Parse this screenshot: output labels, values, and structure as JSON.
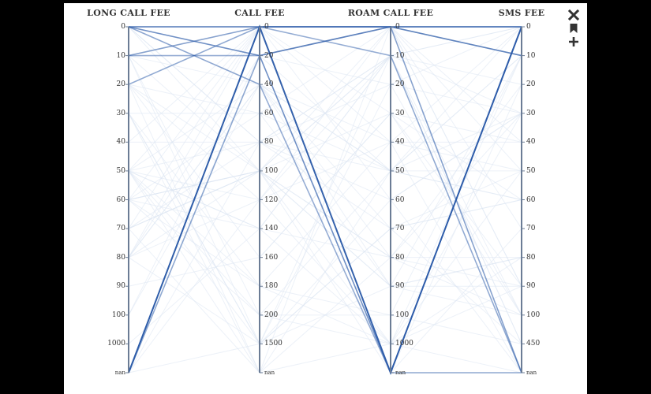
{
  "toolbar": {
    "icons": [
      "close-icon",
      "bookmark-icon",
      "plus-icon"
    ]
  },
  "colors": {
    "accent": "#2a5aa8",
    "axis": "#6b7c95",
    "line_faint": "#dde6f2"
  },
  "chart_data": {
    "type": "parallel-coordinates",
    "title": "",
    "axes": [
      {
        "name": "LONG CALL FEE",
        "ticks": [
          "0",
          "10",
          "20",
          "30",
          "40",
          "50",
          "60",
          "70",
          "80",
          "90",
          "100",
          "1000",
          "nan"
        ],
        "label_side": "left"
      },
      {
        "name": "CALL FEE",
        "ticks": [
          "0",
          "20",
          "40",
          "60",
          "80",
          "100",
          "120",
          "140",
          "160",
          "180",
          "200",
          "1500",
          "nan"
        ],
        "label_side": "right"
      },
      {
        "name": "ROAM CALL FEE",
        "ticks": [
          "0",
          "10",
          "20",
          "30",
          "40",
          "50",
          "60",
          "70",
          "80",
          "90",
          "100",
          "1000",
          "nan"
        ],
        "label_side": "right"
      },
      {
        "name": "SMS FEE",
        "ticks": [
          "0",
          "10",
          "20",
          "30",
          "40",
          "50",
          "60",
          "70",
          "80",
          "90",
          "100",
          "450",
          "nan"
        ],
        "label_side": "right"
      }
    ],
    "highlighted_records": [
      {
        "values": [
          "nan",
          "0",
          "nan",
          "0"
        ],
        "strength": 1.0
      },
      {
        "values": [
          "0",
          "0",
          "0",
          "0"
        ],
        "strength": 0.8
      },
      {
        "values": [
          "0",
          "20",
          "nan",
          "0"
        ],
        "strength": 0.6
      },
      {
        "values": [
          "10",
          "0",
          "0",
          "nan"
        ],
        "strength": 0.45
      },
      {
        "values": [
          "nan",
          "20",
          "0",
          "10"
        ],
        "strength": 0.4
      },
      {
        "values": [
          "0",
          "40",
          "nan",
          "nan"
        ],
        "strength": 0.35
      },
      {
        "values": [
          "10",
          "20",
          "0",
          "0"
        ],
        "strength": 0.35
      },
      {
        "values": [
          "20",
          "0",
          "10",
          "nan"
        ],
        "strength": 0.3
      },
      {
        "values": [
          "nan",
          "0",
          "0",
          "10"
        ],
        "strength": 0.3
      }
    ],
    "background_record_count": 60
  }
}
